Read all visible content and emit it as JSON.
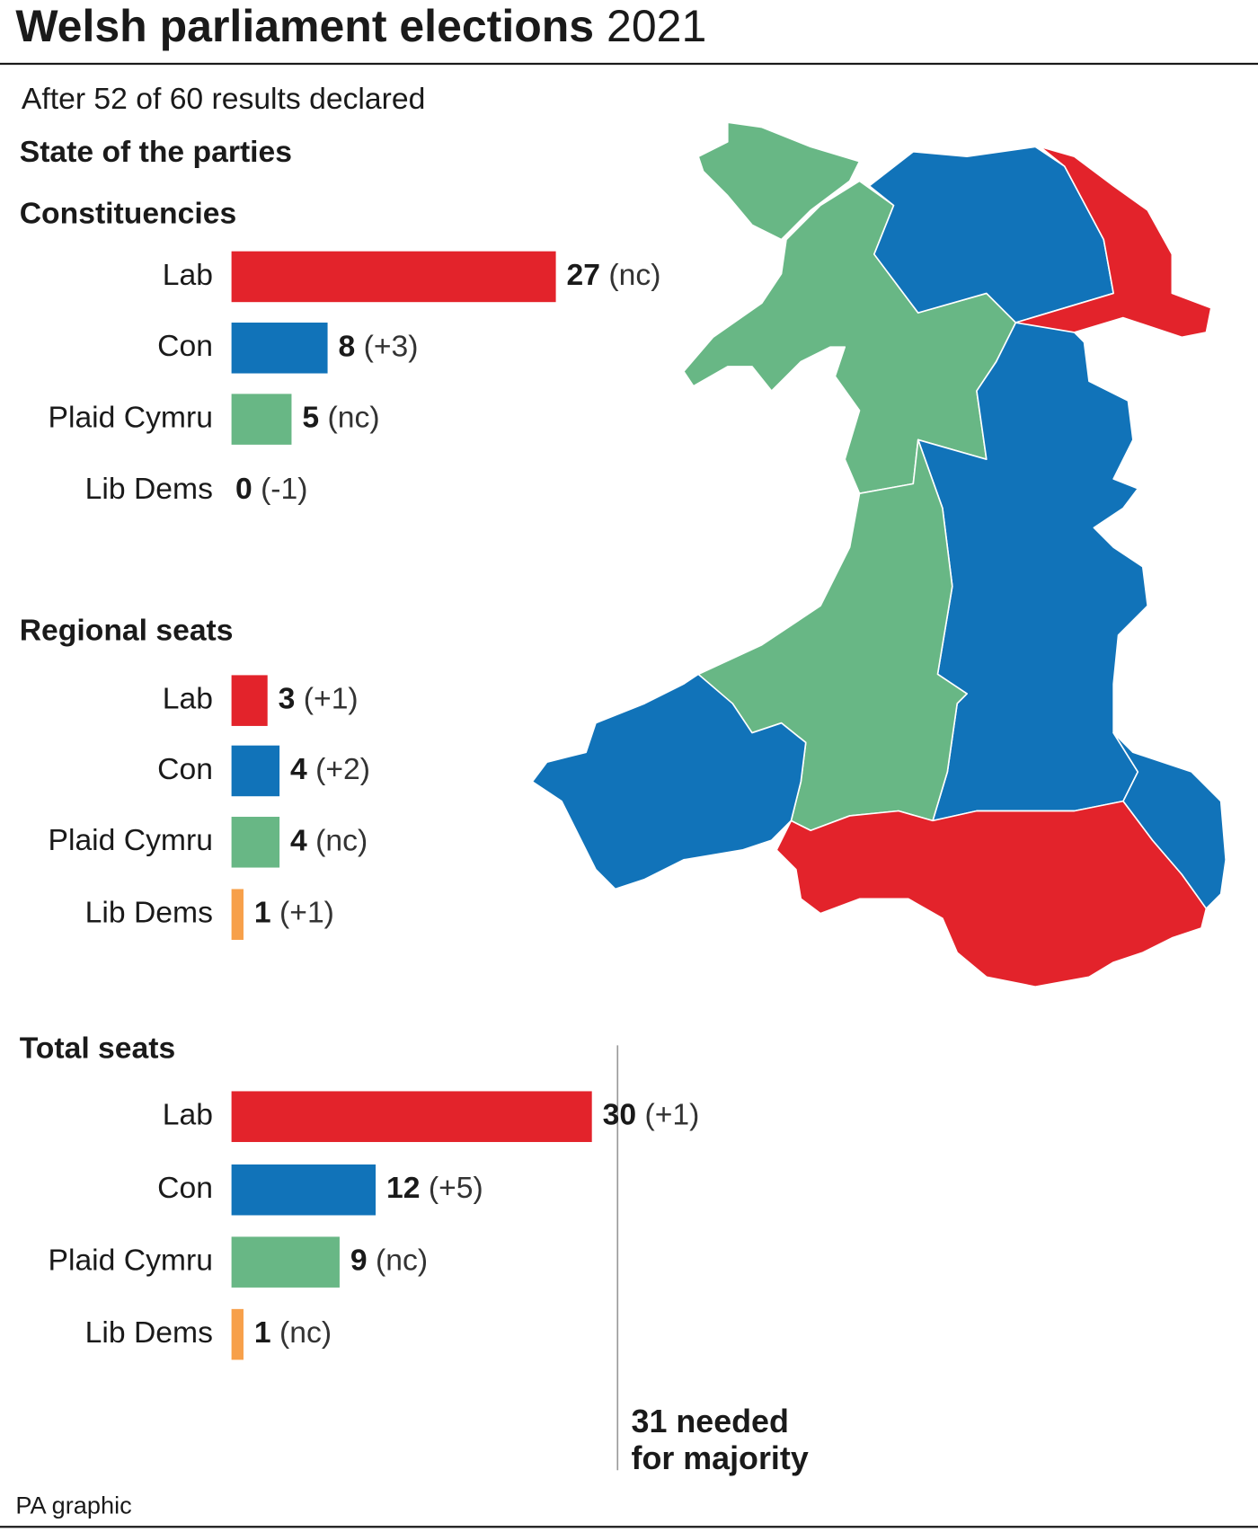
{
  "header": {
    "title": "Welsh parliament elections",
    "year": "2021",
    "subtitle": "After 52 of 60 results declared",
    "section": "State of the parties"
  },
  "chart_data": [
    {
      "type": "bar",
      "title": "Constituencies",
      "categories": [
        "Lab",
        "Con",
        "Plaid Cymru",
        "Lib Dems"
      ],
      "values": [
        27,
        8,
        5,
        0
      ],
      "changes": [
        "(nc)",
        "(+3)",
        "(nc)",
        "(-1)"
      ],
      "colors": [
        "#e3232b",
        "#1173b9",
        "#68b785",
        "#f7a04a"
      ],
      "xlim": [
        0,
        30
      ]
    },
    {
      "type": "bar",
      "title": "Regional seats",
      "categories": [
        "Lab",
        "Con",
        "Plaid Cymru",
        "Lib Dems"
      ],
      "values": [
        3,
        4,
        4,
        1
      ],
      "changes": [
        "(+1)",
        "(+2)",
        "(nc)",
        "(+1)"
      ],
      "colors": [
        "#e3232b",
        "#1173b9",
        "#68b785",
        "#f7a04a"
      ],
      "xlim": [
        0,
        30
      ]
    },
    {
      "type": "bar",
      "title": "Total seats",
      "categories": [
        "Lab",
        "Con",
        "Plaid Cymru",
        "Lib Dems"
      ],
      "values": [
        30,
        12,
        9,
        1
      ],
      "changes": [
        "(+1)",
        "(+5)",
        "(nc)",
        "(nc)"
      ],
      "colors": [
        "#e3232b",
        "#1173b9",
        "#68b785",
        "#f7a04a"
      ],
      "xlim": [
        0,
        30
      ],
      "majority": {
        "value": 31,
        "label": "needed",
        "label2": "for majority"
      }
    }
  ],
  "footer": {
    "source": "PA graphic"
  }
}
